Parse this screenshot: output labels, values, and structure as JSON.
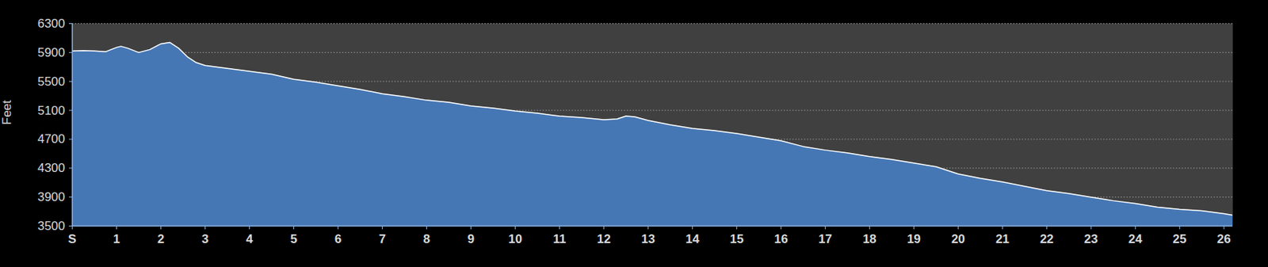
{
  "chart_data": {
    "type": "area",
    "y_label": "Feet",
    "color": "#4677b5",
    "line_color": "#ffffff",
    "grid": true,
    "x": [
      0,
      0.25,
      0.5,
      0.75,
      1.0,
      1.1,
      1.25,
      1.5,
      1.75,
      2.0,
      2.2,
      2.4,
      2.6,
      2.8,
      3,
      3.5,
      4,
      4.5,
      5,
      5.5,
      6,
      6.5,
      7,
      7.5,
      8,
      8.5,
      9,
      9.5,
      10,
      10.5,
      11,
      11.5,
      12,
      12.3,
      12.5,
      12.7,
      13,
      13.5,
      14,
      14.5,
      15,
      15.5,
      16,
      16.5,
      17,
      17.5,
      18,
      18.5,
      19,
      19.5,
      20,
      20.5,
      21,
      21.5,
      22,
      22.5,
      23,
      23.5,
      24,
      24.5,
      25,
      25.5,
      26,
      26.2
    ],
    "values": [
      5920,
      5925,
      5920,
      5910,
      5970,
      5985,
      5960,
      5900,
      5940,
      6020,
      6040,
      5960,
      5840,
      5760,
      5720,
      5680,
      5640,
      5600,
      5530,
      5490,
      5440,
      5390,
      5330,
      5290,
      5240,
      5210,
      5160,
      5130,
      5090,
      5060,
      5020,
      5000,
      4970,
      4980,
      5020,
      5010,
      4960,
      4900,
      4850,
      4820,
      4780,
      4730,
      4680,
      4600,
      4550,
      4510,
      4460,
      4420,
      4370,
      4320,
      4220,
      4160,
      4110,
      4050,
      3990,
      3950,
      3900,
      3850,
      3810,
      3760,
      3730,
      3710,
      3670,
      3650
    ],
    "xlim": [
      0,
      26.2
    ],
    "xticks": [
      {
        "value": 0,
        "label": "S"
      },
      1,
      2,
      3,
      4,
      5,
      6,
      7,
      8,
      9,
      10,
      11,
      12,
      13,
      14,
      15,
      16,
      17,
      18,
      19,
      20,
      21,
      22,
      23,
      24,
      25,
      26
    ],
    "ylim": [
      3500,
      6300
    ],
    "yticks": [
      3500,
      3900,
      4300,
      4700,
      5100,
      5500,
      5900,
      6300
    ]
  }
}
